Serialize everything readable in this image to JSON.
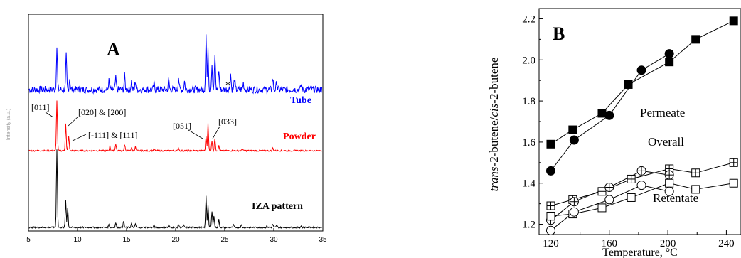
{
  "chart_data": [
    {
      "type": "line",
      "panel_label": "A",
      "xlabel": "",
      "ylabel": "Intensity (a.u.)",
      "xlim": [
        5,
        35
      ],
      "x_ticks": [
        "5",
        "10",
        "15",
        "20",
        "25",
        "30",
        "35"
      ],
      "series": [
        {
          "name": "Tube",
          "color": "#0000ff",
          "peaks": [
            {
              "x": 7.9,
              "h": 0.75
            },
            {
              "x": 8.85,
              "h": 0.6
            },
            {
              "x": 9.2,
              "h": 0.2
            },
            {
              "x": 13.2,
              "h": 0.15
            },
            {
              "x": 13.9,
              "h": 0.2
            },
            {
              "x": 14.8,
              "h": 0.25
            },
            {
              "x": 15.5,
              "h": 0.15
            },
            {
              "x": 15.9,
              "h": 0.15
            },
            {
              "x": 17.8,
              "h": 0.1
            },
            {
              "x": 19.3,
              "h": 0.18
            },
            {
              "x": 20.3,
              "h": 0.22
            },
            {
              "x": 20.9,
              "h": 0.15
            },
            {
              "x": 23.1,
              "h": 1.0
            },
            {
              "x": 23.3,
              "h": 0.7
            },
            {
              "x": 23.7,
              "h": 0.45
            },
            {
              "x": 24.0,
              "h": 0.6
            },
            {
              "x": 24.4,
              "h": 0.35
            },
            {
              "x": 25.6,
              "h": 0.28
            },
            {
              "x": 26.0,
              "h": 0.2
            },
            {
              "x": 26.9,
              "h": 0.12
            },
            {
              "x": 29.9,
              "h": 0.2
            },
            {
              "x": 30.3,
              "h": 0.15
            },
            {
              "x": 32.8,
              "h": 0.08
            }
          ]
        },
        {
          "name": "Powder",
          "color": "#ff0000",
          "peaks": [
            {
              "x": 7.9,
              "h": 1.0
            },
            {
              "x": 8.8,
              "h": 0.55
            },
            {
              "x": 9.1,
              "h": 0.3
            },
            {
              "x": 13.3,
              "h": 0.1
            },
            {
              "x": 13.9,
              "h": 0.14
            },
            {
              "x": 14.8,
              "h": 0.12
            },
            {
              "x": 15.5,
              "h": 0.06
            },
            {
              "x": 15.9,
              "h": 0.08
            },
            {
              "x": 17.8,
              "h": 0.04
            },
            {
              "x": 20.3,
              "h": 0.05
            },
            {
              "x": 23.1,
              "h": 0.3
            },
            {
              "x": 23.3,
              "h": 0.55
            },
            {
              "x": 23.7,
              "h": 0.2
            },
            {
              "x": 24.0,
              "h": 0.25
            },
            {
              "x": 24.4,
              "h": 0.1
            },
            {
              "x": 26.8,
              "h": 0.04
            },
            {
              "x": 29.9,
              "h": 0.05
            }
          ]
        },
        {
          "name": "IZA pattern",
          "color": "#000000",
          "peaks": [
            {
              "x": 7.9,
              "h": 1.0
            },
            {
              "x": 8.8,
              "h": 0.35
            },
            {
              "x": 9.0,
              "h": 0.25
            },
            {
              "x": 13.2,
              "h": 0.04
            },
            {
              "x": 13.9,
              "h": 0.06
            },
            {
              "x": 14.7,
              "h": 0.08
            },
            {
              "x": 15.5,
              "h": 0.05
            },
            {
              "x": 15.9,
              "h": 0.04
            },
            {
              "x": 17.8,
              "h": 0.03
            },
            {
              "x": 19.3,
              "h": 0.03
            },
            {
              "x": 20.3,
              "h": 0.04
            },
            {
              "x": 20.8,
              "h": 0.03
            },
            {
              "x": 23.1,
              "h": 0.4
            },
            {
              "x": 23.3,
              "h": 0.3
            },
            {
              "x": 23.7,
              "h": 0.2
            },
            {
              "x": 23.9,
              "h": 0.15
            },
            {
              "x": 24.4,
              "h": 0.1
            },
            {
              "x": 25.9,
              "h": 0.03
            },
            {
              "x": 26.7,
              "h": 0.03
            },
            {
              "x": 29.3,
              "h": 0.02
            },
            {
              "x": 29.9,
              "h": 0.04
            },
            {
              "x": 30.3,
              "h": 0.03
            },
            {
              "x": 32.8,
              "h": 0.02
            }
          ]
        }
      ],
      "annotations": [
        "[011]",
        "[020] & [200]",
        "[-111] & [111]",
        "[051]",
        "[033]",
        "*"
      ]
    },
    {
      "type": "line",
      "panel_label": "B",
      "xlabel": "Temperature, °C",
      "ylabel_parts": [
        "trans",
        "-2-butene/",
        "cis",
        "-2-butene"
      ],
      "xlim": [
        112,
        250
      ],
      "ylim": [
        1.15,
        2.25
      ],
      "x_ticks": [
        120,
        160,
        200,
        240
      ],
      "y_ticks": [
        1.2,
        1.4,
        1.6,
        1.8,
        2.0,
        2.2
      ],
      "series": [
        {
          "marker": "filled-square",
          "x": [
            120,
            135,
            155,
            173,
            201,
            219,
            245
          ],
          "y": [
            1.59,
            1.66,
            1.74,
            1.88,
            1.99,
            2.1,
            2.19
          ]
        },
        {
          "marker": "filled-circle",
          "x": [
            120,
            136,
            160,
            182,
            201
          ],
          "y": [
            1.46,
            1.61,
            1.73,
            1.95,
            2.03
          ]
        },
        {
          "marker": "crossed-square",
          "x": [
            120,
            135,
            155,
            175,
            201,
            219,
            245
          ],
          "y": [
            1.29,
            1.32,
            1.36,
            1.42,
            1.47,
            1.45,
            1.5
          ]
        },
        {
          "marker": "crossed-circle",
          "x": [
            120,
            136,
            160,
            182,
            201
          ],
          "y": [
            1.22,
            1.31,
            1.38,
            1.46,
            1.44
          ]
        },
        {
          "marker": "open-square",
          "x": [
            120,
            135,
            155,
            175,
            201,
            219,
            245
          ],
          "y": [
            1.24,
            1.25,
            1.28,
            1.33,
            1.4,
            1.37,
            1.4
          ]
        },
        {
          "marker": "open-circle",
          "x": [
            120,
            136,
            160,
            182,
            201
          ],
          "y": [
            1.17,
            1.26,
            1.32,
            1.39,
            1.36
          ]
        }
      ],
      "annotations": [
        "Permeate",
        "Overall",
        "Retentate"
      ]
    }
  ]
}
